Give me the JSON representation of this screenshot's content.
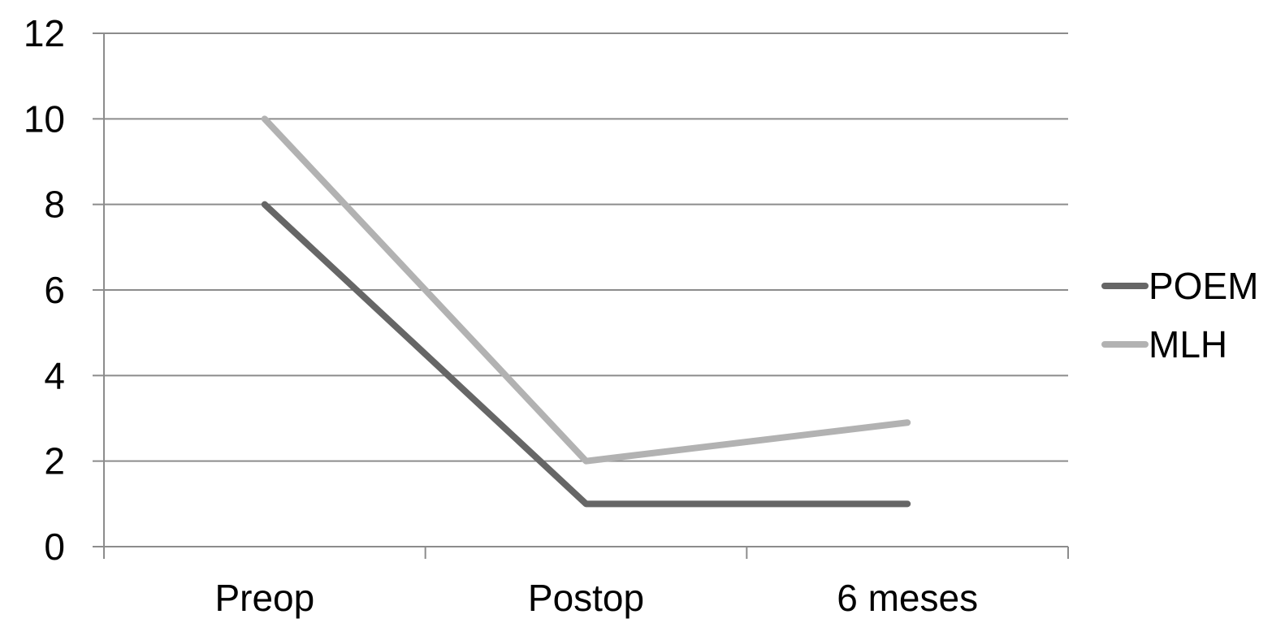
{
  "chart_data": {
    "type": "line",
    "title": "",
    "xlabel": "",
    "ylabel": "",
    "categories": [
      "Preop",
      "Postop",
      "6 meses"
    ],
    "y_ticks": [
      "0",
      "2",
      "4",
      "6",
      "8",
      "10",
      "12"
    ],
    "ylim": [
      0,
      12
    ],
    "grid": true,
    "legend_position": "right",
    "series": [
      {
        "name": "POEM",
        "values": [
          8,
          1,
          1
        ],
        "color": "#666666"
      },
      {
        "name": "MLH",
        "values": [
          10,
          2,
          2.9
        ],
        "color": "#b2b2b2"
      }
    ],
    "colors": {
      "gridline": "#8c8c8c",
      "axis": "#8c8c8c"
    }
  }
}
